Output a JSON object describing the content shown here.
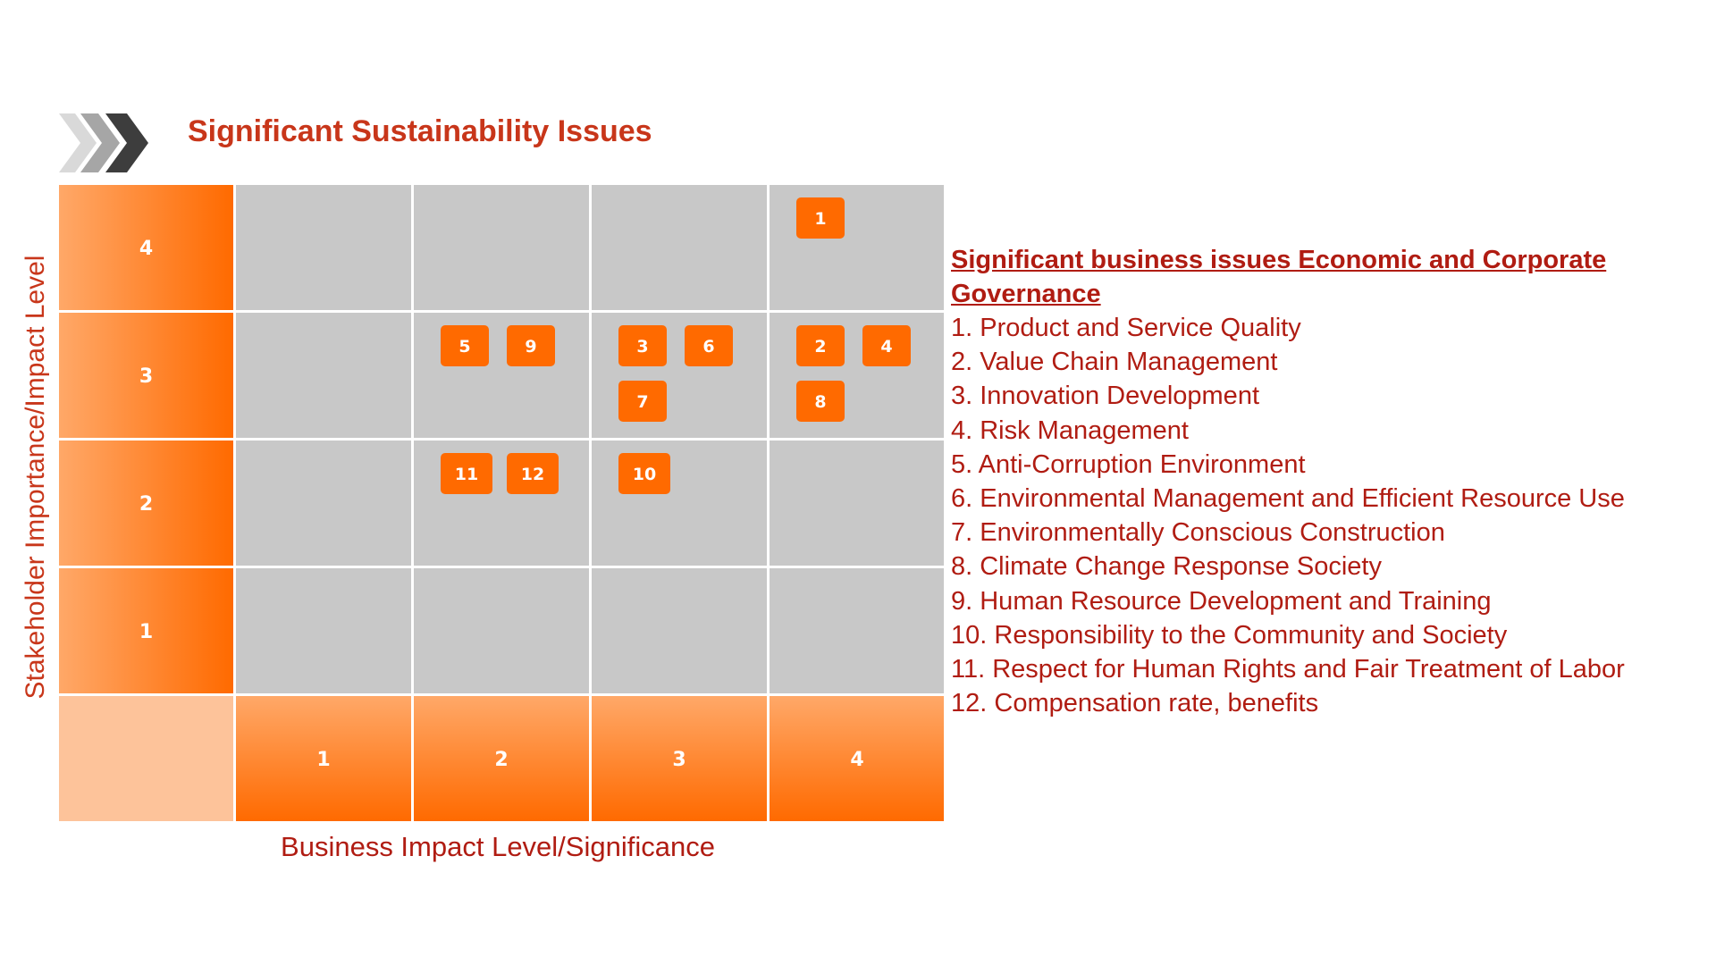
{
  "title": "Significant Sustainability Issues",
  "colors": {
    "accent_orange": "#ff6a00",
    "light_orange": "#ffa868",
    "corner_peach": "#fdc39a",
    "cell_gray": "#c8c8c8",
    "title_red": "#c8361a",
    "text_red": "#b01c12"
  },
  "chart_data": {
    "type": "scatter",
    "title": "Significant Sustainability Issues",
    "xlabel": "Business Impact Level/Significance",
    "ylabel": "Stakeholder Importance/Impact Level",
    "x_levels": [
      "1",
      "2",
      "3",
      "4"
    ],
    "y_levels": [
      "1",
      "2",
      "3",
      "4"
    ],
    "xlim": [
      1,
      4
    ],
    "ylim": [
      1,
      4
    ],
    "grid": true,
    "points": [
      {
        "label": "1",
        "x": 4,
        "y": 4,
        "slot": 0,
        "row": 0
      },
      {
        "label": "2",
        "x": 4,
        "y": 3,
        "slot": 0,
        "row": 0
      },
      {
        "label": "4",
        "x": 4,
        "y": 3,
        "slot": 1,
        "row": 0
      },
      {
        "label": "8",
        "x": 4,
        "y": 3,
        "slot": 0,
        "row": 1
      },
      {
        "label": "3",
        "x": 3,
        "y": 3,
        "slot": 0,
        "row": 0
      },
      {
        "label": "6",
        "x": 3,
        "y": 3,
        "slot": 1,
        "row": 0
      },
      {
        "label": "7",
        "x": 3,
        "y": 3,
        "slot": 0,
        "row": 1
      },
      {
        "label": "5",
        "x": 2,
        "y": 3,
        "slot": 0,
        "row": 0
      },
      {
        "label": "9",
        "x": 2,
        "y": 3,
        "slot": 1,
        "row": 0
      },
      {
        "label": "11",
        "x": 2,
        "y": 2,
        "slot": 0,
        "row": 0
      },
      {
        "label": "12",
        "x": 2,
        "y": 2,
        "slot": 1,
        "row": 0
      },
      {
        "label": "10",
        "x": 3,
        "y": 2,
        "slot": 0,
        "row": 0
      }
    ]
  },
  "legend": {
    "title": "Significant business issues Economic and Corporate Governance",
    "items": [
      "1. Product and Service Quality",
      "2. Value Chain Management",
      "3. Innovation Development",
      "4. Risk Management",
      "5. Anti-Corruption Environment",
      "6. Environmental Management and Efficient Resource Use",
      "7. Environmentally Conscious Construction",
      "8. Climate Change Response Society",
      "9. Human Resource Development and Training",
      "10. Responsibility to the Community and Society",
      "11. Respect for Human Rights and Fair Treatment of Labor",
      "12. Compensation rate, benefits"
    ]
  }
}
